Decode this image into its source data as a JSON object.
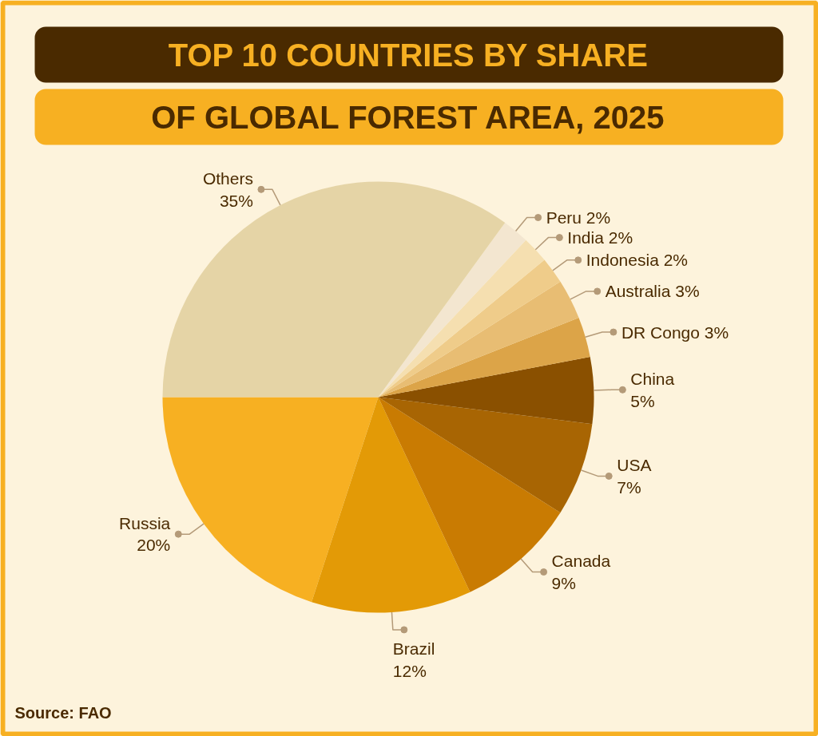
{
  "chart_data": {
    "type": "pie",
    "title": "TOP 10 COUNTRIES BY SHARE\nOF GLOBAL FOREST AREA, 2025",
    "categories": [
      "Russia",
      "Brazil",
      "Canada",
      "USA",
      "China",
      "DR Congo",
      "Australia",
      "Indonesia",
      "India",
      "Peru",
      "Others"
    ],
    "values": [
      20,
      12,
      9,
      7,
      5,
      3,
      3,
      2,
      2,
      2,
      35
    ],
    "value_labels": [
      "20%",
      "12%",
      "9%",
      "7%",
      "5%",
      "3%",
      "3%",
      "2%",
      "2%",
      "2%",
      "35%"
    ],
    "colors": [
      "#f7b022",
      "#e39a06",
      "#c97b02",
      "#a86503",
      "#8a5000",
      "#dca448",
      "#e8bd73",
      "#efcc8a",
      "#f5dfb0",
      "#f3e6d0",
      "#e5d4a6"
    ],
    "annotations": [
      "Source: FAO"
    ]
  }
}
